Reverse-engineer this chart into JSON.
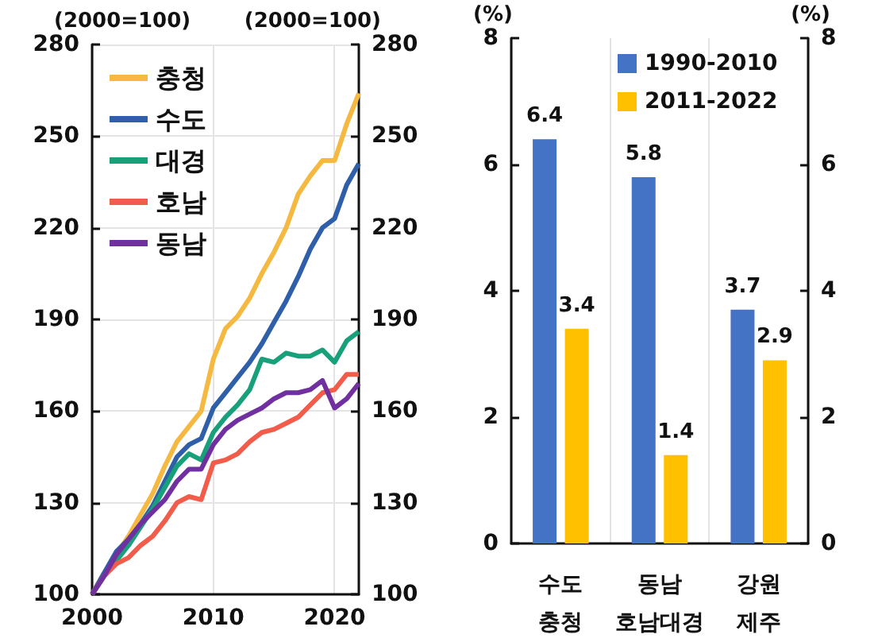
{
  "chart_data": [
    {
      "type": "line",
      "ylabel": "(2000=100)",
      "y2label": "(2000=100)",
      "x": [
        2000,
        2001,
        2002,
        2003,
        2004,
        2005,
        2006,
        2007,
        2008,
        2009,
        2010,
        2011,
        2012,
        2013,
        2014,
        2015,
        2016,
        2017,
        2018,
        2019,
        2020,
        2021,
        2022
      ],
      "xlim": [
        2000,
        2022
      ],
      "xticks": [
        2000,
        2010,
        2020
      ],
      "ylim": [
        100,
        280
      ],
      "yticks": [
        100,
        130,
        160,
        190,
        220,
        250,
        280
      ],
      "y2lim": [
        100,
        280
      ],
      "y2ticks": [
        100,
        130,
        160,
        190,
        220,
        250,
        280
      ],
      "grid": true,
      "legend": "top left",
      "series": [
        {
          "name": "충청",
          "color": "#f5b942",
          "values": [
            100,
            107,
            113,
            119,
            126,
            133,
            142,
            150,
            155,
            160,
            177,
            187,
            191,
            197,
            205,
            212,
            220,
            231,
            237,
            242,
            242,
            254,
            264
          ]
        },
        {
          "name": "수도",
          "color": "#2e5fa8",
          "values": [
            100,
            107,
            114,
            118,
            123,
            129,
            137,
            145,
            149,
            151,
            161,
            166,
            171,
            176,
            182,
            189,
            196,
            204,
            213,
            220,
            223,
            234,
            241
          ]
        },
        {
          "name": "대경",
          "color": "#17a07a",
          "values": [
            100,
            106,
            111,
            116,
            122,
            128,
            135,
            142,
            146,
            144,
            153,
            158,
            162,
            167,
            177,
            176,
            179,
            178,
            178,
            180,
            176,
            183,
            186
          ]
        },
        {
          "name": "호남",
          "color": "#f25c4a",
          "values": [
            100,
            106,
            110,
            112,
            116,
            119,
            124,
            130,
            132,
            131,
            143,
            144,
            146,
            150,
            153,
            154,
            156,
            158,
            162,
            166,
            167,
            172,
            172
          ]
        },
        {
          "name": "동남",
          "color": "#7030a0",
          "values": [
            100,
            106,
            113,
            118,
            123,
            127,
            131,
            137,
            141,
            141,
            149,
            154,
            157,
            159,
            161,
            164,
            166,
            166,
            167,
            170,
            161,
            164,
            169
          ]
        }
      ]
    },
    {
      "type": "bar",
      "ylabel": "(%)",
      "y2label": "(%)",
      "categories": [
        "수도\n충청",
        "동남\n호남대경",
        "강원\n제주"
      ],
      "ylim": [
        0,
        8
      ],
      "yticks": [
        0,
        2,
        4,
        6,
        8
      ],
      "y2lim": [
        0,
        8
      ],
      "y2ticks": [
        0,
        2,
        4,
        6,
        8
      ],
      "grid": "x",
      "legend": "top",
      "data_labels": true,
      "series": [
        {
          "name": "1990-2010",
          "color": "#4472c4",
          "values": [
            6.4,
            5.8,
            3.7
          ]
        },
        {
          "name": "2011-2022",
          "color": "#ffc000",
          "values": [
            3.4,
            1.4,
            2.9
          ]
        }
      ]
    }
  ]
}
